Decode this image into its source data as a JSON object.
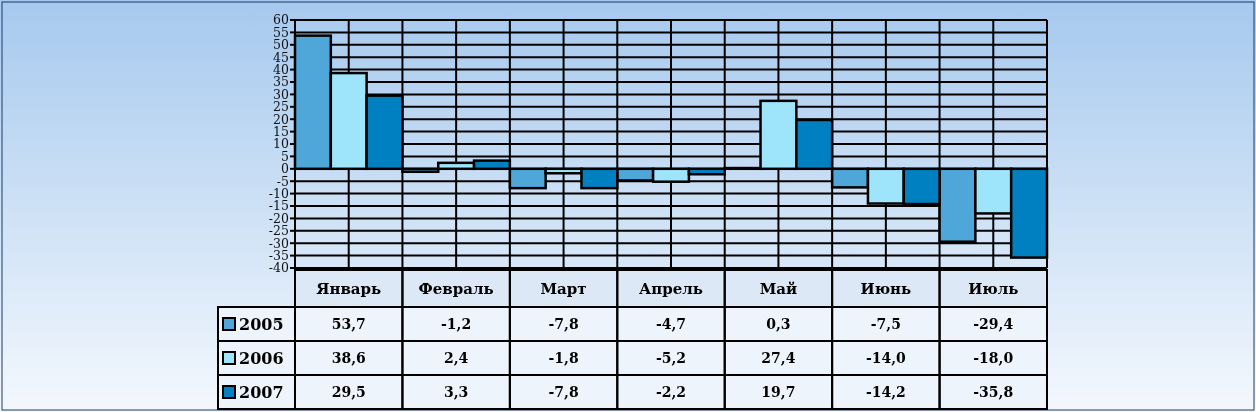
{
  "chart_data": {
    "type": "bar",
    "categories": [
      "Январь",
      "Февраль",
      "Март",
      "Апрель",
      "Май",
      "Июнь",
      "Июль"
    ],
    "series": [
      {
        "name": "2005",
        "color": "#4fa6d8",
        "values": [
          53.7,
          -1.2,
          -7.8,
          -4.7,
          0.3,
          -7.5,
          -29.4
        ],
        "value_labels": [
          "53,7",
          "-1,2",
          "-7,8",
          "-4,7",
          "0,3",
          "-7,5",
          "-29,4"
        ]
      },
      {
        "name": "2006",
        "color": "#9ee4fb",
        "values": [
          38.6,
          2.4,
          -1.8,
          -5.2,
          27.4,
          -14.0,
          -18.0
        ],
        "value_labels": [
          "38,6",
          "2,4",
          "-1,8",
          "-5,2",
          "27,4",
          "-14,0",
          "-18,0"
        ]
      },
      {
        "name": "2007",
        "color": "#0080c0",
        "values": [
          29.5,
          3.3,
          -7.8,
          -2.2,
          19.7,
          -14.2,
          -35.8
        ],
        "value_labels": [
          "29,5",
          "3,3",
          "-7,8",
          "-2,2",
          "19,7",
          "-14,2",
          "-35,8"
        ]
      }
    ],
    "ylim": [
      -40,
      60
    ],
    "yticks": [
      -40,
      -35,
      -30,
      -25,
      -20,
      -15,
      -10,
      -5,
      0,
      5,
      10,
      15,
      20,
      25,
      30,
      35,
      40,
      45,
      50,
      55,
      60
    ],
    "grid": true,
    "legend": "bottom left"
  }
}
